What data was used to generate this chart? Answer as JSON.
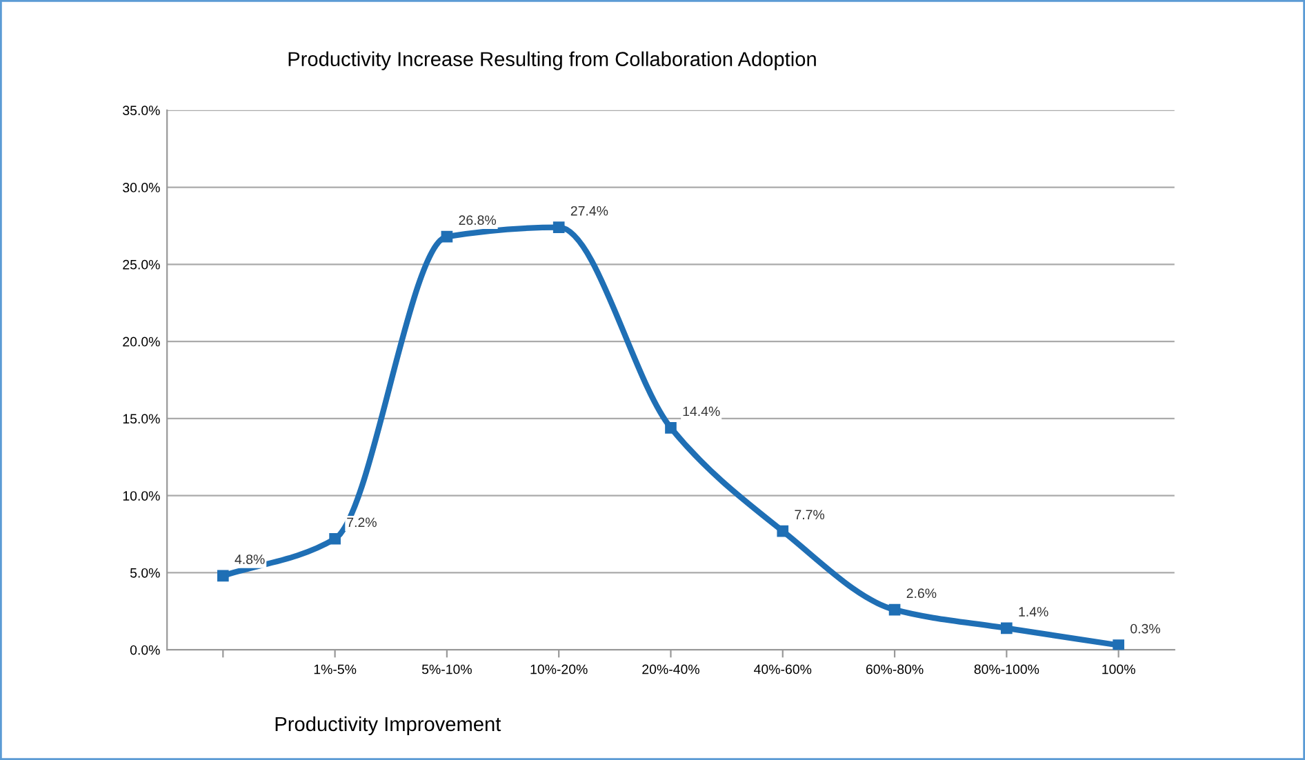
{
  "chart_data": {
    "type": "line",
    "title": "Productivity Increase Resulting from Collaboration Adoption",
    "xlabel": "Productivity Improvement",
    "categories": [
      null,
      "1%-5%",
      "5%-10%",
      "10%-20%",
      "20%-40%",
      "40%-60%",
      "60%-80%",
      "80%-100%",
      "100%"
    ],
    "series": [
      {
        "color": "#1f6fb5",
        "values": [
          4.8,
          7.2,
          26.8,
          27.4,
          14.4,
          7.7,
          2.6,
          1.4,
          0.3
        ],
        "value_labels": [
          "4.8%",
          "7.2%",
          "26.8%",
          "27.4%",
          "14.4%",
          "7.7%",
          "2.6%",
          "1.4%",
          "0.3%"
        ]
      }
    ],
    "ylim": [
      0,
      35
    ],
    "yticks": [
      {
        "value": 0,
        "label": "0.0%"
      },
      {
        "value": 5,
        "label": "5.0%"
      },
      {
        "value": 10,
        "label": "10.0%"
      },
      {
        "value": 15,
        "label": "15.0%"
      },
      {
        "value": 20,
        "label": "20.0%"
      },
      {
        "value": 25,
        "label": "25.0%"
      },
      {
        "value": 30,
        "label": "30.0%"
      },
      {
        "value": 35,
        "label": "35.0%"
      }
    ],
    "grid": "y",
    "marker": "square",
    "legend": false
  }
}
